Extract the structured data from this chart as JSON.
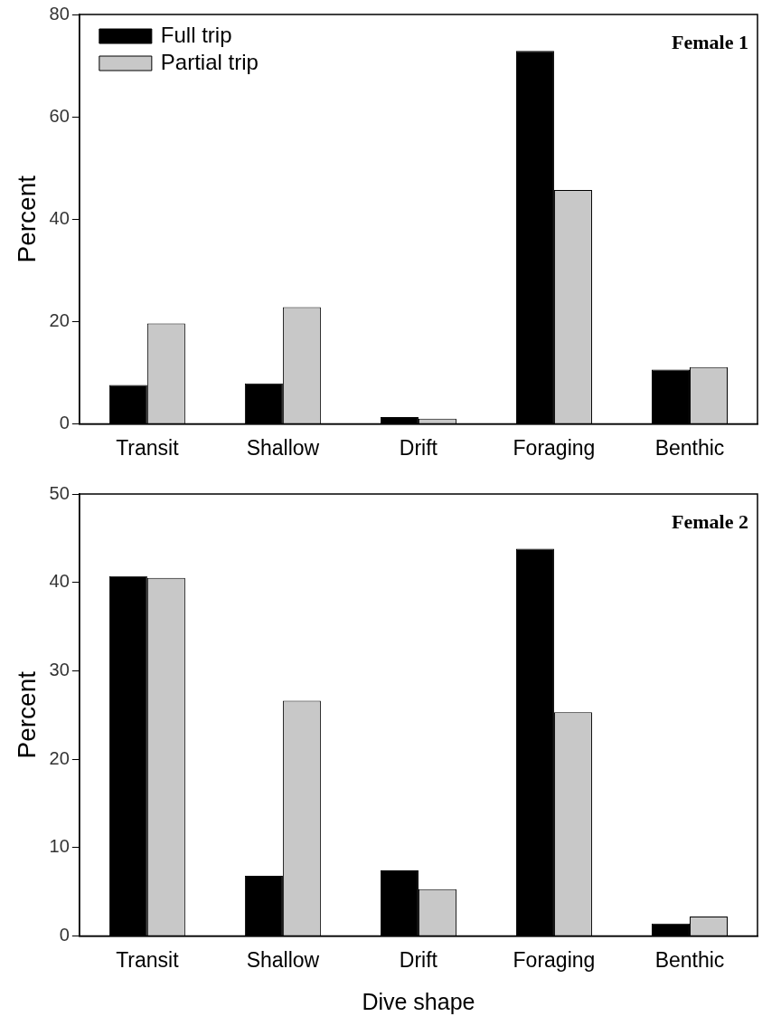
{
  "chart_data": [
    {
      "type": "bar",
      "categories": [
        "Transit",
        "Shallow",
        "Drift",
        "Foraging",
        "Benthic"
      ],
      "ylabel": "Percent",
      "annotations": [
        "Female 1"
      ],
      "ylim": [
        0,
        80
      ],
      "yticks": [
        0,
        20,
        40,
        60,
        80
      ],
      "legend": "top left",
      "series": [
        {
          "name": "Full trip",
          "color": "#000000",
          "values": [
            7.6,
            7.9,
            1.3,
            72.9,
            10.6
          ]
        },
        {
          "name": "Partial trip",
          "color": "#c8c8c8",
          "values": [
            19.6,
            22.8,
            1.0,
            45.7,
            11.1
          ]
        }
      ]
    },
    {
      "type": "bar",
      "categories": [
        "Transit",
        "Shallow",
        "Drift",
        "Foraging",
        "Benthic"
      ],
      "xlabel": "Dive shape",
      "ylabel": "Percent",
      "annotations": [
        "Female 2"
      ],
      "ylim": [
        0,
        50
      ],
      "yticks": [
        0,
        10,
        20,
        30,
        40,
        50
      ],
      "series": [
        {
          "color": "#000000",
          "values": [
            40.7,
            6.8,
            7.4,
            43.8,
            1.4
          ]
        },
        {
          "color": "#c8c8c8",
          "values": [
            40.5,
            26.6,
            5.3,
            25.3,
            2.2
          ]
        }
      ]
    }
  ]
}
